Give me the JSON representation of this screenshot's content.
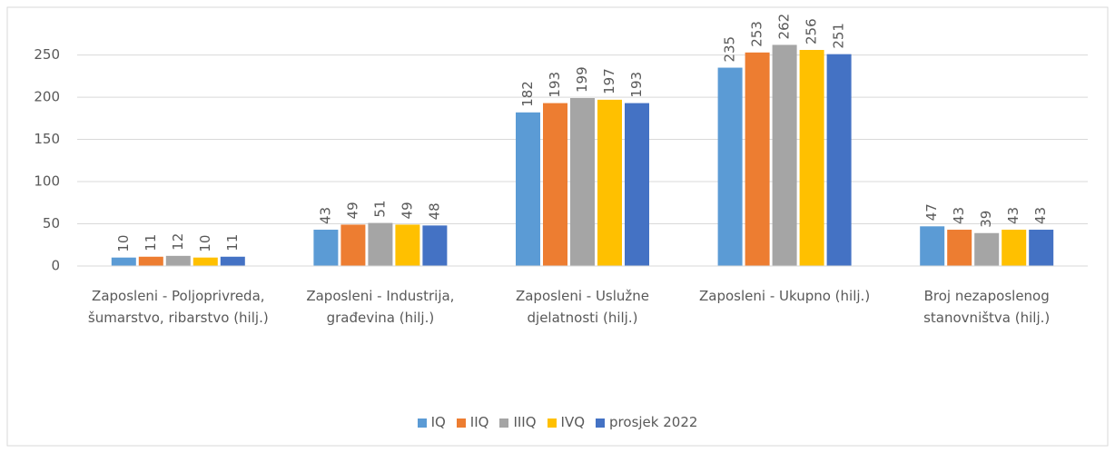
{
  "chart_data": {
    "type": "bar",
    "categories": [
      "Zaposleni - Poljoprivreda, šumarstvo, ribarstvo (hilj.)",
      "Zaposleni - Industrija, građevina (hilj.)",
      "Zaposleni - Uslužne djelatnosti (hilj.)",
      "Zaposleni - Ukupno (hilj.)",
      "Broj nezaposlenog stanovništva (hilj.)"
    ],
    "series": [
      {
        "name": "IQ",
        "color": "#5b9bd5",
        "values": [
          10,
          43,
          182,
          235,
          47
        ]
      },
      {
        "name": "IIQ",
        "color": "#ed7d31",
        "values": [
          11,
          49,
          193,
          253,
          43
        ]
      },
      {
        "name": "IIIQ",
        "color": "#a5a5a5",
        "values": [
          12,
          51,
          199,
          262,
          39
        ]
      },
      {
        "name": "IVQ",
        "color": "#ffc000",
        "values": [
          10,
          49,
          197,
          256,
          43
        ]
      },
      {
        "name": "prosjek 2022",
        "color": "#4472c4",
        "values": [
          11,
          48,
          193,
          251,
          43
        ]
      }
    ],
    "ylim": [
      0,
      270
    ],
    "yticks": [
      0,
      50,
      100,
      150,
      200,
      250
    ],
    "grid": true,
    "legend": "bottom"
  }
}
